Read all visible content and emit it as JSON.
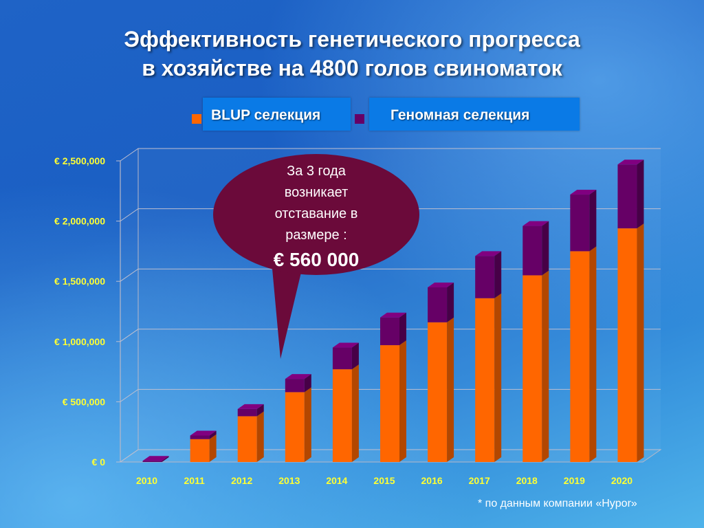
{
  "title": {
    "line1": "Эффективность генетического прогресса",
    "line2": "в хозяйстве на 4800 голов свиноматок"
  },
  "legend": {
    "blup": {
      "label": "BLUP селекция",
      "color": "#ff6600"
    },
    "genomic": {
      "label": "Геномная селекция",
      "color": "#660066"
    }
  },
  "callout": {
    "line1": "За  3 года",
    "line2": "возникает",
    "line3": "отставание в",
    "line4": "размере :",
    "amount": "€ 560 000",
    "color": "#6b0a3a"
  },
  "footnote": "* по данным компании «Hypor»",
  "chart_data": {
    "type": "bar",
    "stacked": true,
    "categories": [
      "2010",
      "2011",
      "2012",
      "2013",
      "2014",
      "2015",
      "2016",
      "2017",
      "2018",
      "2019",
      "2020"
    ],
    "series": [
      {
        "name": "BLUP селекция",
        "values": [
          0,
          190000,
          380000,
          580000,
          770000,
          970000,
          1160000,
          1360000,
          1550000,
          1750000,
          1940000
        ],
        "color": "#ff6600"
      },
      {
        "name": "Геномная селекция",
        "values": [
          10000,
          30000,
          60000,
          110000,
          180000,
          230000,
          290000,
          350000,
          410000,
          470000,
          530000
        ],
        "color": "#660066"
      }
    ],
    "y_ticks": [
      "€ 0",
      "€ 500,000",
      "€ 1,000,000",
      "€ 1,500,000",
      "€ 2,000,000",
      "€ 2,500,000"
    ],
    "ylim": [
      0,
      2500000
    ],
    "xlabel": "",
    "ylabel": "",
    "grid": true
  }
}
